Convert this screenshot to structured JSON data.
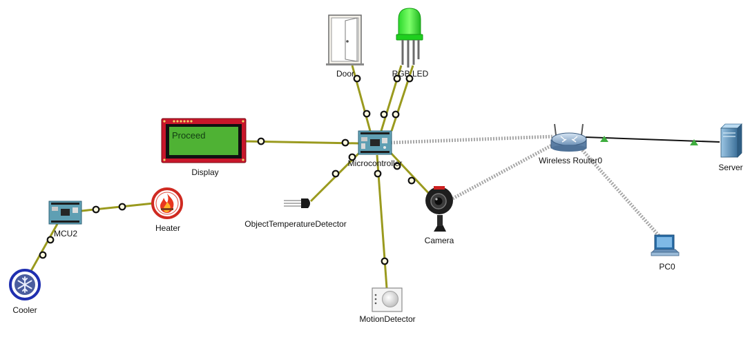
{
  "devices": {
    "door": {
      "label": "Door"
    },
    "rgb_led": {
      "label": "RGB LED"
    },
    "display": {
      "label": "Display",
      "screen_text": "Proceed"
    },
    "microcontroller": {
      "label": "Microcontroller"
    },
    "router": {
      "label": "Wireless Router0"
    },
    "server": {
      "label": "Server"
    },
    "mcu2": {
      "label": "MCU2"
    },
    "heater": {
      "label": "Heater"
    },
    "cooler": {
      "label": "Cooler"
    },
    "temp_detector": {
      "label": "ObjectTemperatureDetector"
    },
    "camera": {
      "label": "Camera"
    },
    "pc0": {
      "label": "PC0"
    },
    "motion_detector": {
      "label": "MotionDetector"
    }
  },
  "colors": {
    "iot_cable": "#9a9a1e",
    "wireless_link": "#a6a6a6",
    "ethernet": "#111111",
    "link_up": "#3fae3f"
  }
}
